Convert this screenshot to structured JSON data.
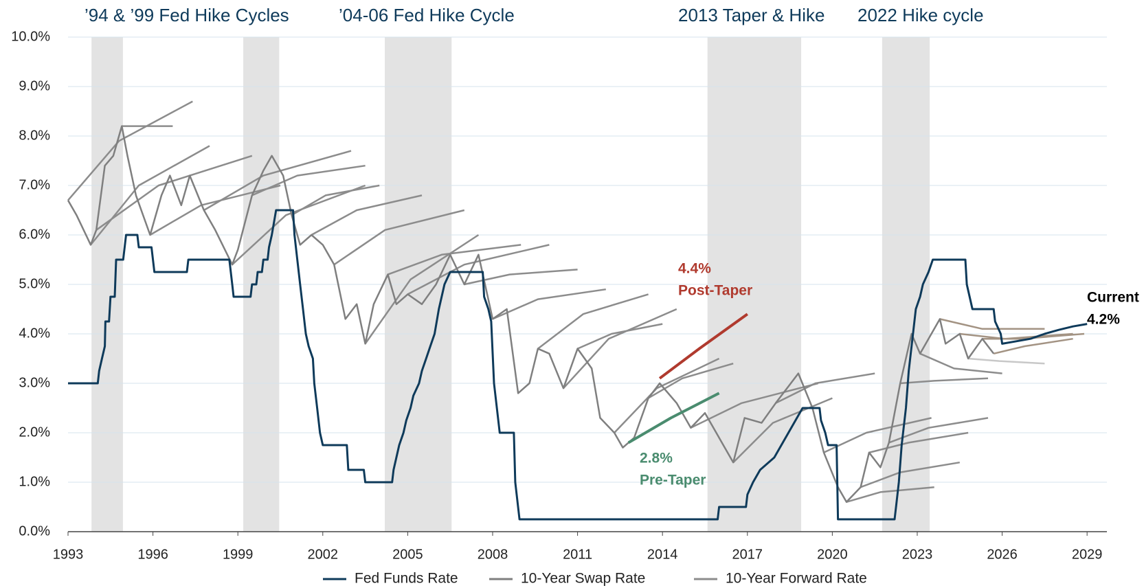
{
  "chart_data": {
    "type": "line",
    "xlim": [
      1993,
      2029.7
    ],
    "xticks": [
      1993,
      1996,
      1999,
      2002,
      2005,
      2008,
      2011,
      2014,
      2017,
      2020,
      2023,
      2026,
      2029
    ],
    "ylim": [
      0,
      10
    ],
    "yticks": [
      {
        "value": 0,
        "label": "0.0%"
      },
      {
        "value": 1,
        "label": "1.0%"
      },
      {
        "value": 2,
        "label": "2.0%"
      },
      {
        "value": 3,
        "label": "3.0%"
      },
      {
        "value": 4,
        "label": "4.0%"
      },
      {
        "value": 5,
        "label": "5.0%"
      },
      {
        "value": 6,
        "label": "6.0%"
      },
      {
        "value": 7,
        "label": "7.0%"
      },
      {
        "value": 8,
        "label": "8.0%"
      },
      {
        "value": 9,
        "label": "9.0%"
      },
      {
        "value": 10,
        "label": "10.0%"
      }
    ],
    "grid": true,
    "shaded_periods": [
      [
        1993.83,
        1994.94
      ],
      [
        1999.19,
        2000.46
      ],
      [
        2004.19,
        2006.55
      ],
      [
        2015.59,
        2018.9
      ],
      [
        2021.76,
        2023.44
      ]
    ],
    "shade_color": "#e3e3e3",
    "period_labels": [
      "’94 & ’99 Fed Hike Cycles",
      "’04-06 Fed Hike Cycle",
      "2013 Taper & Hike",
      "2022 Hike cycle"
    ],
    "series": [
      {
        "name": "Fed Funds Rate",
        "color": "#0e3a5a",
        "x": [
          1993,
          1994.05,
          1994.1,
          1994.2,
          1994.3,
          1994.32,
          1994.45,
          1994.5,
          1994.65,
          1994.7,
          1994.95,
          1995.05,
          1995.45,
          1995.5,
          1995.95,
          1996.05,
          1997.2,
          1997.25,
          1998.7,
          1998.75,
          1998.8,
          1998.85,
          1999.45,
          1999.5,
          1999.65,
          1999.7,
          1999.85,
          1999.9,
          2000.05,
          2000.1,
          2000.2,
          2000.35,
          2000.95,
          2001.0,
          2001.1,
          2001.2,
          2001.3,
          2001.4,
          2001.5,
          2001.65,
          2001.7,
          2001.8,
          2001.9,
          2002.0,
          2002.85,
          2002.9,
          2003.45,
          2003.5,
          2004.45,
          2004.5,
          2004.6,
          2004.7,
          2004.85,
          2004.95,
          2005.1,
          2005.2,
          2005.4,
          2005.5,
          2005.65,
          2005.8,
          2005.95,
          2006.1,
          2006.3,
          2006.5,
          2007.65,
          2007.7,
          2007.85,
          2007.95,
          2008.05,
          2008.25,
          2008.75,
          2008.8,
          2008.95,
          2015.95,
          2016.0,
          2016.95,
          2017.0,
          2017.2,
          2017.45,
          2017.95,
          2018.2,
          2018.45,
          2018.7,
          2018.95,
          2019.55,
          2019.6,
          2019.75,
          2019.85,
          2020.15,
          2020.2,
          2022.2,
          2022.25,
          2022.35,
          2022.45,
          2022.6,
          2022.7,
          2022.85,
          2022.95,
          2023.1,
          2023.2,
          2023.4,
          2023.55,
          2024.7,
          2024.75,
          2024.85,
          2024.95,
          2025.7,
          2025.75,
          2025.95,
          2026.0,
          2026.5,
          2027,
          2027.5,
          2028,
          2028.5,
          2029
        ],
        "values": [
          3,
          3,
          3.25,
          3.5,
          3.75,
          4.25,
          4.25,
          4.75,
          4.75,
          5.5,
          5.5,
          6,
          6,
          5.75,
          5.75,
          5.25,
          5.25,
          5.5,
          5.5,
          5.25,
          5.0,
          4.75,
          4.75,
          5.0,
          5.0,
          5.25,
          5.25,
          5.5,
          5.5,
          5.75,
          6.0,
          6.5,
          6.5,
          6.0,
          5.5,
          5.0,
          4.5,
          4.0,
          3.75,
          3.5,
          3.0,
          2.5,
          2.0,
          1.75,
          1.75,
          1.25,
          1.25,
          1.0,
          1.0,
          1.25,
          1.5,
          1.75,
          2.0,
          2.25,
          2.5,
          2.75,
          3.0,
          3.25,
          3.5,
          3.75,
          4.0,
          4.5,
          5.0,
          5.25,
          5.25,
          4.75,
          4.5,
          4.25,
          3.0,
          2.0,
          2.0,
          1.0,
          0.25,
          0.25,
          0.5,
          0.5,
          0.75,
          1.0,
          1.25,
          1.5,
          1.75,
          2.0,
          2.25,
          2.5,
          2.5,
          2.25,
          2.0,
          1.75,
          1.75,
          0.25,
          0.25,
          0.5,
          1.0,
          1.75,
          2.5,
          3.25,
          4.0,
          4.5,
          4.75,
          5.0,
          5.25,
          5.5,
          5.5,
          5.0,
          4.75,
          4.5,
          4.5,
          4.25,
          4.0,
          3.8,
          3.85,
          3.9,
          4.0,
          4.08,
          4.15,
          4.2
        ]
      },
      {
        "name": "10-Year Swap Rate",
        "color": "#7f7f7f",
        "x": [
          1993,
          1993.3,
          1993.8,
          1994.0,
          1994.3,
          1994.6,
          1994.9,
          1995.1,
          1995.4,
          1995.9,
          1996.3,
          1996.6,
          1997.0,
          1997.3,
          1997.8,
          1998.2,
          1998.8,
          1999.0,
          1999.5,
          1999.9,
          2000.2,
          2000.6,
          2000.9,
          2001.2,
          2001.6,
          2002.0,
          2002.4,
          2002.8,
          2003.2,
          2003.5,
          2003.8,
          2004.3,
          2004.6,
          2005.0,
          2005.5,
          2006.0,
          2006.5,
          2007.0,
          2007.5,
          2008.0,
          2008.5,
          2008.9,
          2009.3,
          2009.6,
          2010.0,
          2010.5,
          2011.0,
          2011.5,
          2011.8,
          2012.3,
          2012.6,
          2013.0,
          2013.5,
          2013.9,
          2014.5,
          2015.0,
          2015.5,
          2016.0,
          2016.5,
          2016.9,
          2017.5,
          2018.0,
          2018.8,
          2019.3,
          2019.7,
          2020.2,
          2020.5,
          2021.0,
          2021.3,
          2021.7,
          2022.0,
          2022.4,
          2022.8,
          2023.1,
          2023.8,
          2024.0,
          2024.5,
          2024.8,
          2025.3,
          2025.7
        ],
        "values": [
          6.7,
          6.4,
          5.8,
          6.1,
          7.4,
          7.6,
          8.2,
          7.6,
          6.8,
          6.0,
          6.8,
          7.2,
          6.6,
          7.2,
          6.5,
          6.1,
          5.4,
          5.7,
          6.8,
          7.3,
          7.6,
          7.2,
          6.4,
          5.8,
          6.0,
          5.8,
          5.4,
          4.3,
          4.6,
          3.8,
          4.6,
          5.2,
          4.6,
          4.8,
          4.6,
          5.0,
          5.6,
          5.0,
          5.6,
          4.3,
          4.5,
          2.8,
          3.0,
          3.7,
          3.6,
          2.9,
          3.7,
          3.3,
          2.3,
          2.0,
          1.7,
          1.9,
          2.7,
          3.0,
          2.6,
          2.1,
          2.4,
          1.9,
          1.4,
          2.3,
          2.2,
          2.6,
          3.2,
          2.5,
          1.6,
          0.9,
          0.6,
          0.9,
          1.6,
          1.3,
          1.8,
          3.0,
          4.0,
          3.6,
          4.3,
          3.8,
          4.0,
          3.5,
          3.9,
          3.6
        ]
      },
      {
        "name": "10-Year Forward Rate",
        "color": "#8c8c8c",
        "curves": [
          {
            "x": [
              1994.9,
              1995.6,
              1996.7
            ],
            "values": [
              8.2,
              8.2,
              8.2
            ],
            "color": "#8c8c8c"
          },
          {
            "x": [
              1993.0,
              1994.8,
              1997.4
            ],
            "values": [
              6.7,
              7.9,
              8.7
            ],
            "color": "#8c8c8c"
          },
          {
            "x": [
              1993.8,
              1995.5,
              1998.0
            ],
            "values": [
              5.8,
              7.0,
              7.8
            ],
            "color": "#8c8c8c"
          },
          {
            "x": [
              1994.0,
              1996.2,
              1999.5
            ],
            "values": [
              6.1,
              7.0,
              7.6
            ],
            "color": "#8c8c8c"
          },
          {
            "x": [
              1995.9,
              1997.7,
              2000.5
            ],
            "values": [
              6.0,
              6.6,
              7.0
            ],
            "color": "#8c8c8c"
          },
          {
            "x": [
              1997.8,
              1999.9,
              2003.0
            ],
            "values": [
              6.5,
              7.2,
              7.7
            ],
            "color": "#8c8c8c"
          },
          {
            "x": [
              1998.8,
              2000.7,
              2003.5
            ],
            "values": [
              5.4,
              6.4,
              7.0
            ],
            "color": "#8c8c8c"
          },
          {
            "x": [
              1999.5,
              2001.1,
              2003.5
            ],
            "values": [
              6.8,
              7.2,
              7.4
            ],
            "color": "#8c8c8c"
          },
          {
            "x": [
              2000.9,
              2002.1,
              2004.0
            ],
            "values": [
              6.4,
              6.8,
              7.0
            ],
            "color": "#8c8c8c"
          },
          {
            "x": [
              2001.6,
              2003.2,
              2005.5
            ],
            "values": [
              6.0,
              6.5,
              6.8
            ],
            "color": "#8c8c8c"
          },
          {
            "x": [
              2002.4,
              2004.2,
              2007.0
            ],
            "values": [
              5.4,
              6.1,
              6.5
            ],
            "color": "#8c8c8c"
          },
          {
            "x": [
              2003.5,
              2005.1,
              2007.5
            ],
            "values": [
              3.8,
              5.1,
              6.0
            ],
            "color": "#8c8c8c"
          },
          {
            "x": [
              2004.3,
              2006.2,
              2009.0
            ],
            "values": [
              5.2,
              5.6,
              5.8
            ],
            "color": "#8c8c8c"
          },
          {
            "x": [
              2005.0,
              2007.0,
              2010.0
            ],
            "values": [
              4.8,
              5.4,
              5.8
            ],
            "color": "#8c8c8c"
          },
          {
            "x": [
              2007.0,
              2008.6,
              2011.0
            ],
            "values": [
              5.0,
              5.2,
              5.3
            ],
            "color": "#8c8c8c"
          },
          {
            "x": [
              2008.0,
              2009.6,
              2012.0
            ],
            "values": [
              4.3,
              4.7,
              4.9
            ],
            "color": "#8c8c8c"
          },
          {
            "x": [
              2009.6,
              2011.2,
              2013.5
            ],
            "values": [
              3.7,
              4.4,
              4.8
            ],
            "color": "#8c8c8c"
          },
          {
            "x": [
              2010.5,
              2012.1,
              2014.5
            ],
            "values": [
              2.9,
              3.9,
              4.5
            ],
            "color": "#8c8c8c"
          },
          {
            "x": [
              2011.0,
              2012.2,
              2014.0
            ],
            "values": [
              3.7,
              4.0,
              4.2
            ],
            "color": "#8c8c8c"
          },
          {
            "x": [
              2012.3,
              2013.8,
              2016.0
            ],
            "values": [
              2.0,
              2.9,
              3.5
            ],
            "color": "#8c8c8c"
          },
          {
            "x": [
              2013.5,
              2014.7,
              2016.5
            ],
            "values": [
              2.7,
              3.1,
              3.4
            ],
            "color": "#8c8c8c"
          },
          {
            "x": [
              2015.0,
              2016.8,
              2019.5
            ],
            "values": [
              2.1,
              2.6,
              3.0
            ],
            "color": "#8c8c8c"
          },
          {
            "x": [
              2016.5,
              2017.9,
              2020.0
            ],
            "values": [
              1.4,
              2.2,
              2.7
            ],
            "color": "#8c8c8c"
          },
          {
            "x": [
              2018.0,
              2019.4,
              2021.5
            ],
            "values": [
              2.6,
              3.0,
              3.2
            ],
            "color": "#8c8c8c"
          },
          {
            "x": [
              2019.7,
              2021.2,
              2023.5
            ],
            "values": [
              1.6,
              2.0,
              2.3
            ],
            "color": "#8c8c8c"
          },
          {
            "x": [
              2020.5,
              2021.7,
              2023.6
            ],
            "values": [
              0.6,
              0.8,
              0.9
            ],
            "color": "#8c8c8c"
          },
          {
            "x": [
              2021.0,
              2022.4,
              2024.5
            ],
            "values": [
              0.9,
              1.2,
              1.4
            ],
            "color": "#8c8c8c"
          },
          {
            "x": [
              2021.3,
              2022.7,
              2024.8
            ],
            "values": [
              1.6,
              1.8,
              2.0
            ],
            "color": "#8c8c8c"
          },
          {
            "x": [
              2022.0,
              2023.4,
              2025.5
            ],
            "values": [
              1.8,
              2.1,
              2.3
            ],
            "color": "#8c8c8c"
          },
          {
            "x": [
              2022.4,
              2023.6,
              2025.5
            ],
            "values": [
              3.0,
              3.05,
              3.1
            ],
            "color": "#8c8c8c"
          },
          {
            "x": [
              2023.1,
              2024.3,
              2026.0
            ],
            "values": [
              3.6,
              3.3,
              3.2
            ],
            "color": "#8c8c8c"
          },
          {
            "x": [
              2023.8,
              2025.3,
              2027.5
            ],
            "values": [
              4.3,
              4.1,
              4.1
            ],
            "color": "#a39383"
          },
          {
            "x": [
              2024.5,
              2026.1,
              2028.5
            ],
            "values": [
              4.0,
              3.9,
              4.0
            ],
            "color": "#a39383"
          },
          {
            "x": [
              2024.8,
              2025.9,
              2027.5
            ],
            "values": [
              3.5,
              3.45,
              3.4
            ],
            "color": "#c8c8c8"
          },
          {
            "x": [
              2025.3,
              2026.7,
              2028.9
            ],
            "values": [
              3.9,
              3.9,
              4.0
            ],
            "color": "#a39383"
          },
          {
            "x": [
              2025.7,
              2026.8,
              2028.5
            ],
            "values": [
              3.6,
              3.75,
              3.9
            ],
            "color": "#a39383"
          }
        ]
      }
    ],
    "annotations": [
      {
        "lines": [
          "4.4%",
          "Post-Taper"
        ],
        "color": "#b03a2e",
        "x": [
          2013.9,
          2015.3,
          2017.0
        ],
        "values": [
          3.1,
          3.7,
          4.4
        ]
      },
      {
        "lines": [
          "2.8%",
          "Pre-Taper"
        ],
        "color": "#4a8c6f",
        "x": [
          2012.8,
          2014.3,
          2016.0
        ],
        "values": [
          1.8,
          2.3,
          2.8
        ]
      },
      {
        "lines": [
          "Current",
          "4.2%"
        ],
        "color": "#000000"
      }
    ]
  }
}
